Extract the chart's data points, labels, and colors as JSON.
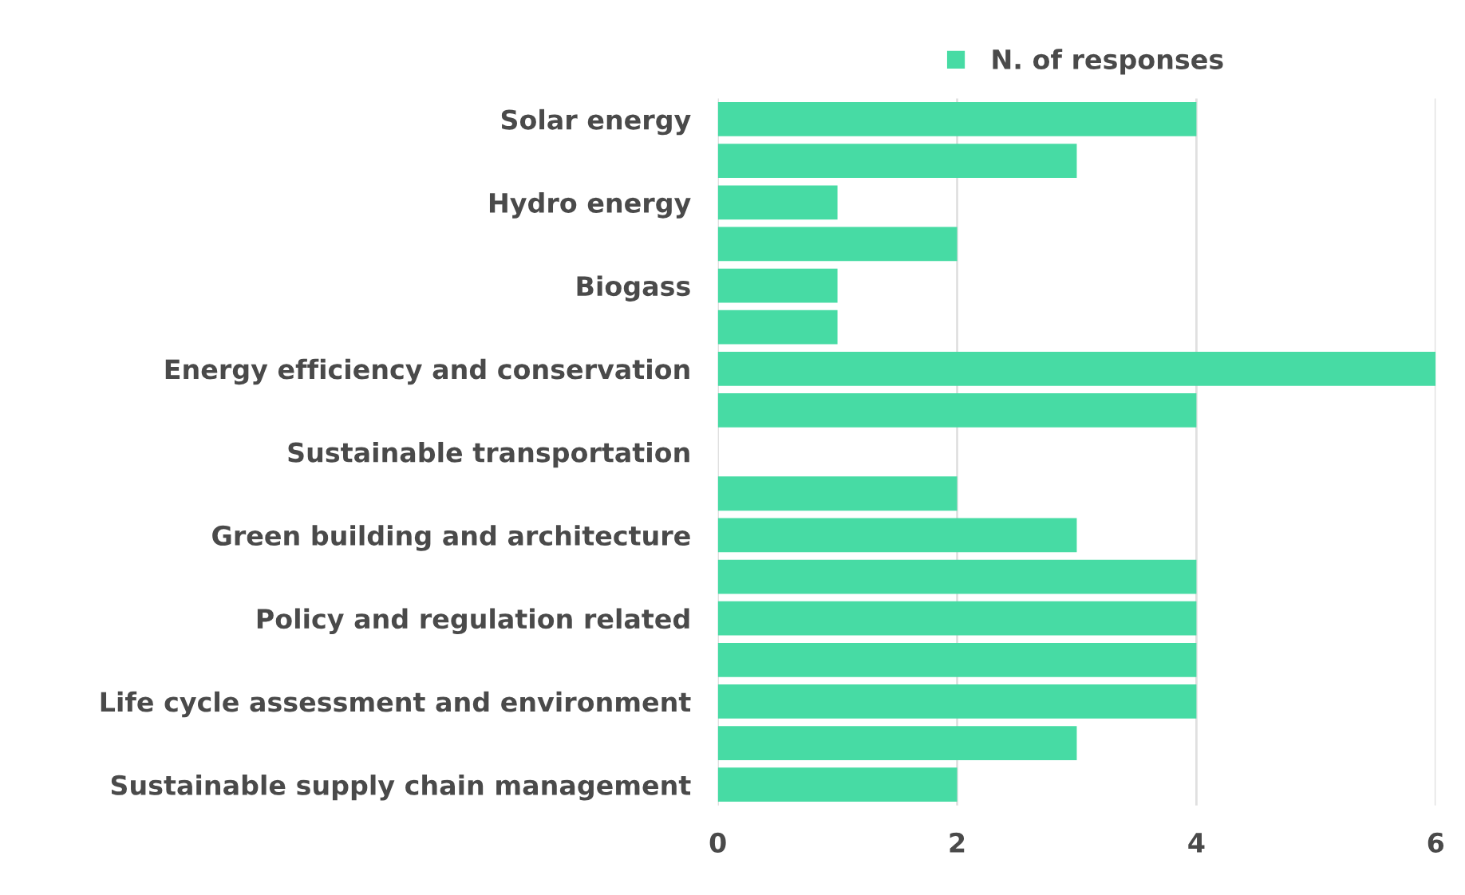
{
  "chart_data": {
    "type": "bar",
    "orientation": "horizontal",
    "categories": [
      "Solar energy",
      null,
      "Hydro energy",
      null,
      "Biogass",
      null,
      "Energy efficiency and conservation",
      null,
      "Sustainable transportation",
      null,
      "Green building and architecture",
      null,
      "Policy and regulation related",
      null,
      "Life cycle assessment and environment",
      null,
      "Sustainable supply chain management"
    ],
    "series": [
      {
        "name": "N. of responses",
        "color": "#47dba4",
        "values": [
          4,
          3,
          1,
          2,
          1,
          1,
          6,
          4,
          0,
          2,
          3,
          4,
          4,
          4,
          4,
          3,
          2
        ]
      }
    ],
    "xlim": [
      0,
      6
    ],
    "xticks": [
      0,
      2,
      4,
      6
    ],
    "grid": "x",
    "legend": "top"
  }
}
